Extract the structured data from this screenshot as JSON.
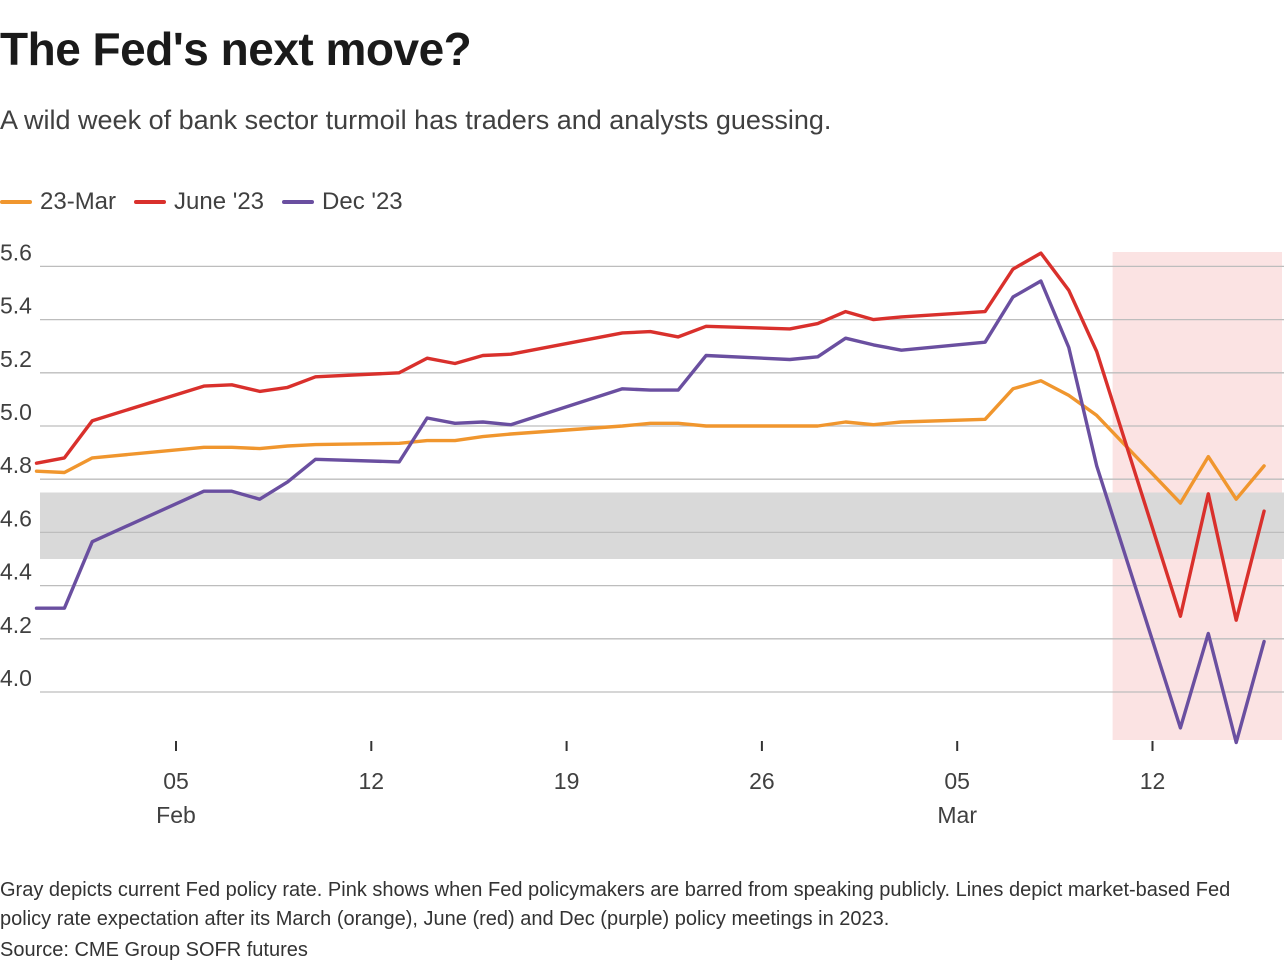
{
  "title": "The Fed's next move?",
  "subtitle": "A wild week of bank sector turmoil has traders and analysts guessing.",
  "note": "Gray depicts current Fed policy rate. Pink shows when Fed policymakers are barred from speaking publicly. Lines depict market-based Fed policy rate expectation after its March (orange), June (red) and Dec (purple) policy meetings in 2023.",
  "source": "Source: CME Group SOFR futures",
  "colors": {
    "march": "#f0962e",
    "june": "#d9302c",
    "dec": "#6a4fa0",
    "policy_band": "#d9d9d9",
    "blackout": "#fbe3e3",
    "grid": "#bdbdbd"
  },
  "chart_data": {
    "type": "line",
    "xlabel": "",
    "ylabel": "",
    "ylim": [
      3.8,
      5.65
    ],
    "yticks": [
      4.0,
      4.2,
      4.4,
      4.6,
      4.8,
      5.0,
      5.2,
      5.4,
      5.6
    ],
    "xlim": [
      "2023-01-30",
      "2023-03-19"
    ],
    "xticks": [
      {
        "date": "2023-02-05",
        "label": "05",
        "sublabel": "Feb"
      },
      {
        "date": "2023-02-12",
        "label": "12",
        "sublabel": ""
      },
      {
        "date": "2023-02-19",
        "label": "19",
        "sublabel": ""
      },
      {
        "date": "2023-02-26",
        "label": "26",
        "sublabel": ""
      },
      {
        "date": "2023-03-05",
        "label": "05",
        "sublabel": "Mar"
      },
      {
        "date": "2023-03-12",
        "label": "12",
        "sublabel": ""
      }
    ],
    "shaded_bands": [
      {
        "name": "policy_rate",
        "y": [
          4.5,
          4.75
        ]
      }
    ],
    "shaded_periods": [
      {
        "name": "blackout",
        "x": [
          "2023-03-11",
          "2023-03-19"
        ]
      }
    ],
    "grid": true,
    "legend_position": "top-left",
    "series": [
      {
        "name": "23-Mar",
        "color": "#f0962e",
        "points": [
          [
            "2023-01-31",
            4.83
          ],
          [
            "2023-02-01",
            4.825
          ],
          [
            "2023-02-02",
            4.88
          ],
          [
            "2023-02-06",
            4.92
          ],
          [
            "2023-02-07",
            4.92
          ],
          [
            "2023-02-08",
            4.915
          ],
          [
            "2023-02-09",
            4.925
          ],
          [
            "2023-02-10",
            4.93
          ],
          [
            "2023-02-13",
            4.935
          ],
          [
            "2023-02-14",
            4.945
          ],
          [
            "2023-02-15",
            4.945
          ],
          [
            "2023-02-16",
            4.96
          ],
          [
            "2023-02-17",
            4.97
          ],
          [
            "2023-02-21",
            5.0
          ],
          [
            "2023-02-22",
            5.01
          ],
          [
            "2023-02-23",
            5.01
          ],
          [
            "2023-02-24",
            5.0
          ],
          [
            "2023-02-27",
            5.0
          ],
          [
            "2023-02-28",
            5.0
          ],
          [
            "2023-03-01",
            5.015
          ],
          [
            "2023-03-02",
            5.005
          ],
          [
            "2023-03-03",
            5.015
          ],
          [
            "2023-03-06",
            5.025
          ],
          [
            "2023-03-07",
            5.14
          ],
          [
            "2023-03-08",
            5.17
          ],
          [
            "2023-03-09",
            5.115
          ],
          [
            "2023-03-10",
            5.04
          ],
          [
            "2023-03-13",
            4.71
          ],
          [
            "2023-03-14",
            4.885
          ],
          [
            "2023-03-15",
            4.725
          ],
          [
            "2023-03-16",
            4.85
          ]
        ]
      },
      {
        "name": "June '23",
        "color": "#d9302c",
        "points": [
          [
            "2023-01-31",
            4.86
          ],
          [
            "2023-02-01",
            4.88
          ],
          [
            "2023-02-02",
            5.02
          ],
          [
            "2023-02-06",
            5.15
          ],
          [
            "2023-02-07",
            5.155
          ],
          [
            "2023-02-08",
            5.13
          ],
          [
            "2023-02-09",
            5.145
          ],
          [
            "2023-02-10",
            5.185
          ],
          [
            "2023-02-13",
            5.2
          ],
          [
            "2023-02-14",
            5.255
          ],
          [
            "2023-02-15",
            5.235
          ],
          [
            "2023-02-16",
            5.265
          ],
          [
            "2023-02-17",
            5.27
          ],
          [
            "2023-02-21",
            5.35
          ],
          [
            "2023-02-22",
            5.355
          ],
          [
            "2023-02-23",
            5.335
          ],
          [
            "2023-02-24",
            5.375
          ],
          [
            "2023-02-27",
            5.365
          ],
          [
            "2023-02-28",
            5.385
          ],
          [
            "2023-03-01",
            5.43
          ],
          [
            "2023-03-02",
            5.4
          ],
          [
            "2023-03-03",
            5.41
          ],
          [
            "2023-03-06",
            5.43
          ],
          [
            "2023-03-07",
            5.59
          ],
          [
            "2023-03-08",
            5.65
          ],
          [
            "2023-03-09",
            5.51
          ],
          [
            "2023-03-10",
            5.28
          ],
          [
            "2023-03-13",
            4.285
          ],
          [
            "2023-03-14",
            4.745
          ],
          [
            "2023-03-15",
            4.27
          ],
          [
            "2023-03-16",
            4.68
          ]
        ]
      },
      {
        "name": "Dec '23",
        "color": "#6a4fa0",
        "points": [
          [
            "2023-01-31",
            4.315
          ],
          [
            "2023-02-01",
            4.315
          ],
          [
            "2023-02-02",
            4.565
          ],
          [
            "2023-02-06",
            4.755
          ],
          [
            "2023-02-07",
            4.755
          ],
          [
            "2023-02-08",
            4.725
          ],
          [
            "2023-02-09",
            4.79
          ],
          [
            "2023-02-10",
            4.875
          ],
          [
            "2023-02-13",
            4.865
          ],
          [
            "2023-02-14",
            5.03
          ],
          [
            "2023-02-15",
            5.01
          ],
          [
            "2023-02-16",
            5.015
          ],
          [
            "2023-02-17",
            5.005
          ],
          [
            "2023-02-21",
            5.14
          ],
          [
            "2023-02-22",
            5.135
          ],
          [
            "2023-02-23",
            5.135
          ],
          [
            "2023-02-24",
            5.265
          ],
          [
            "2023-02-27",
            5.25
          ],
          [
            "2023-02-28",
            5.26
          ],
          [
            "2023-03-01",
            5.33
          ],
          [
            "2023-03-02",
            5.305
          ],
          [
            "2023-03-03",
            5.285
          ],
          [
            "2023-03-06",
            5.315
          ],
          [
            "2023-03-07",
            5.485
          ],
          [
            "2023-03-08",
            5.545
          ],
          [
            "2023-03-09",
            5.295
          ],
          [
            "2023-03-10",
            4.85
          ],
          [
            "2023-03-13",
            3.865
          ],
          [
            "2023-03-14",
            4.22
          ],
          [
            "2023-03-15",
            3.81
          ],
          [
            "2023-03-16",
            4.19
          ]
        ]
      }
    ]
  }
}
